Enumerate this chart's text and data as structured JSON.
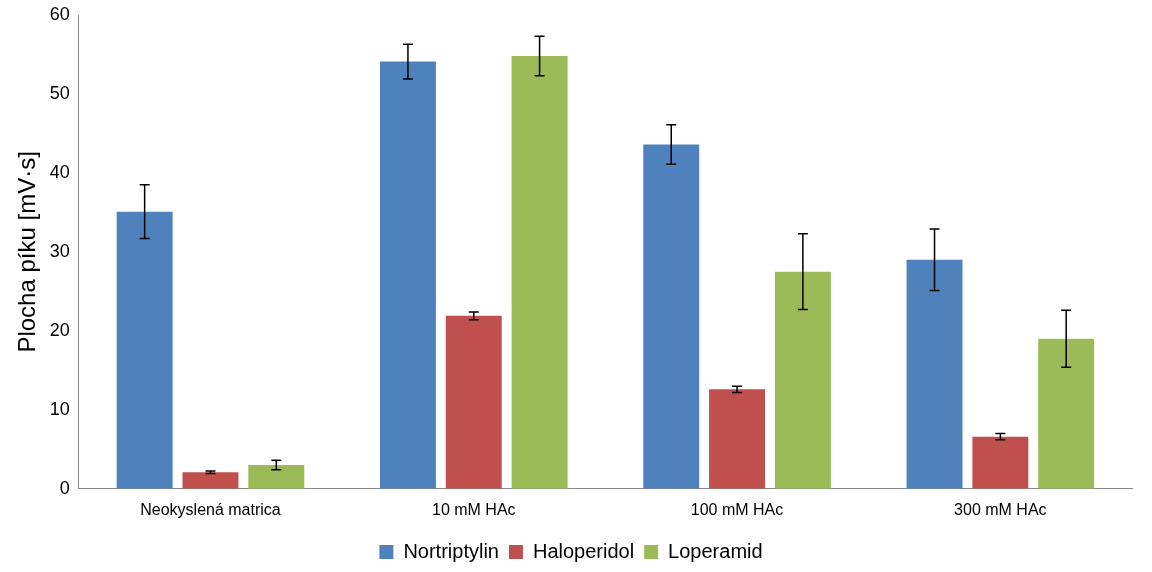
{
  "chart_data": {
    "type": "bar",
    "ylabel": "Plocha píku [mV·s]",
    "categories": [
      "Neokyslená matrica",
      "10 mM HAc",
      "100 mM HAc",
      "300 mM HAc"
    ],
    "series": [
      {
        "name": "Nortriptylin",
        "color": "#4f81bd",
        "values": [
          35.1,
          54.1,
          43.6,
          29.0
        ],
        "errors": [
          3.4,
          2.2,
          2.5,
          3.9
        ]
      },
      {
        "name": "Haloperidol",
        "color": "#c0504d",
        "values": [
          2.1,
          21.9,
          12.6,
          6.6
        ],
        "errors": [
          0.15,
          0.5,
          0.4,
          0.4
        ]
      },
      {
        "name": "Loperamid",
        "color": "#9bbb59",
        "values": [
          3.0,
          54.8,
          27.5,
          19.0
        ],
        "errors": [
          0.6,
          2.5,
          4.8,
          3.6
        ]
      }
    ],
    "ylim": [
      0,
      60
    ],
    "yticks": [
      0,
      10,
      20,
      30,
      40,
      50,
      60
    ],
    "grid": false,
    "legend": "bottom"
  }
}
